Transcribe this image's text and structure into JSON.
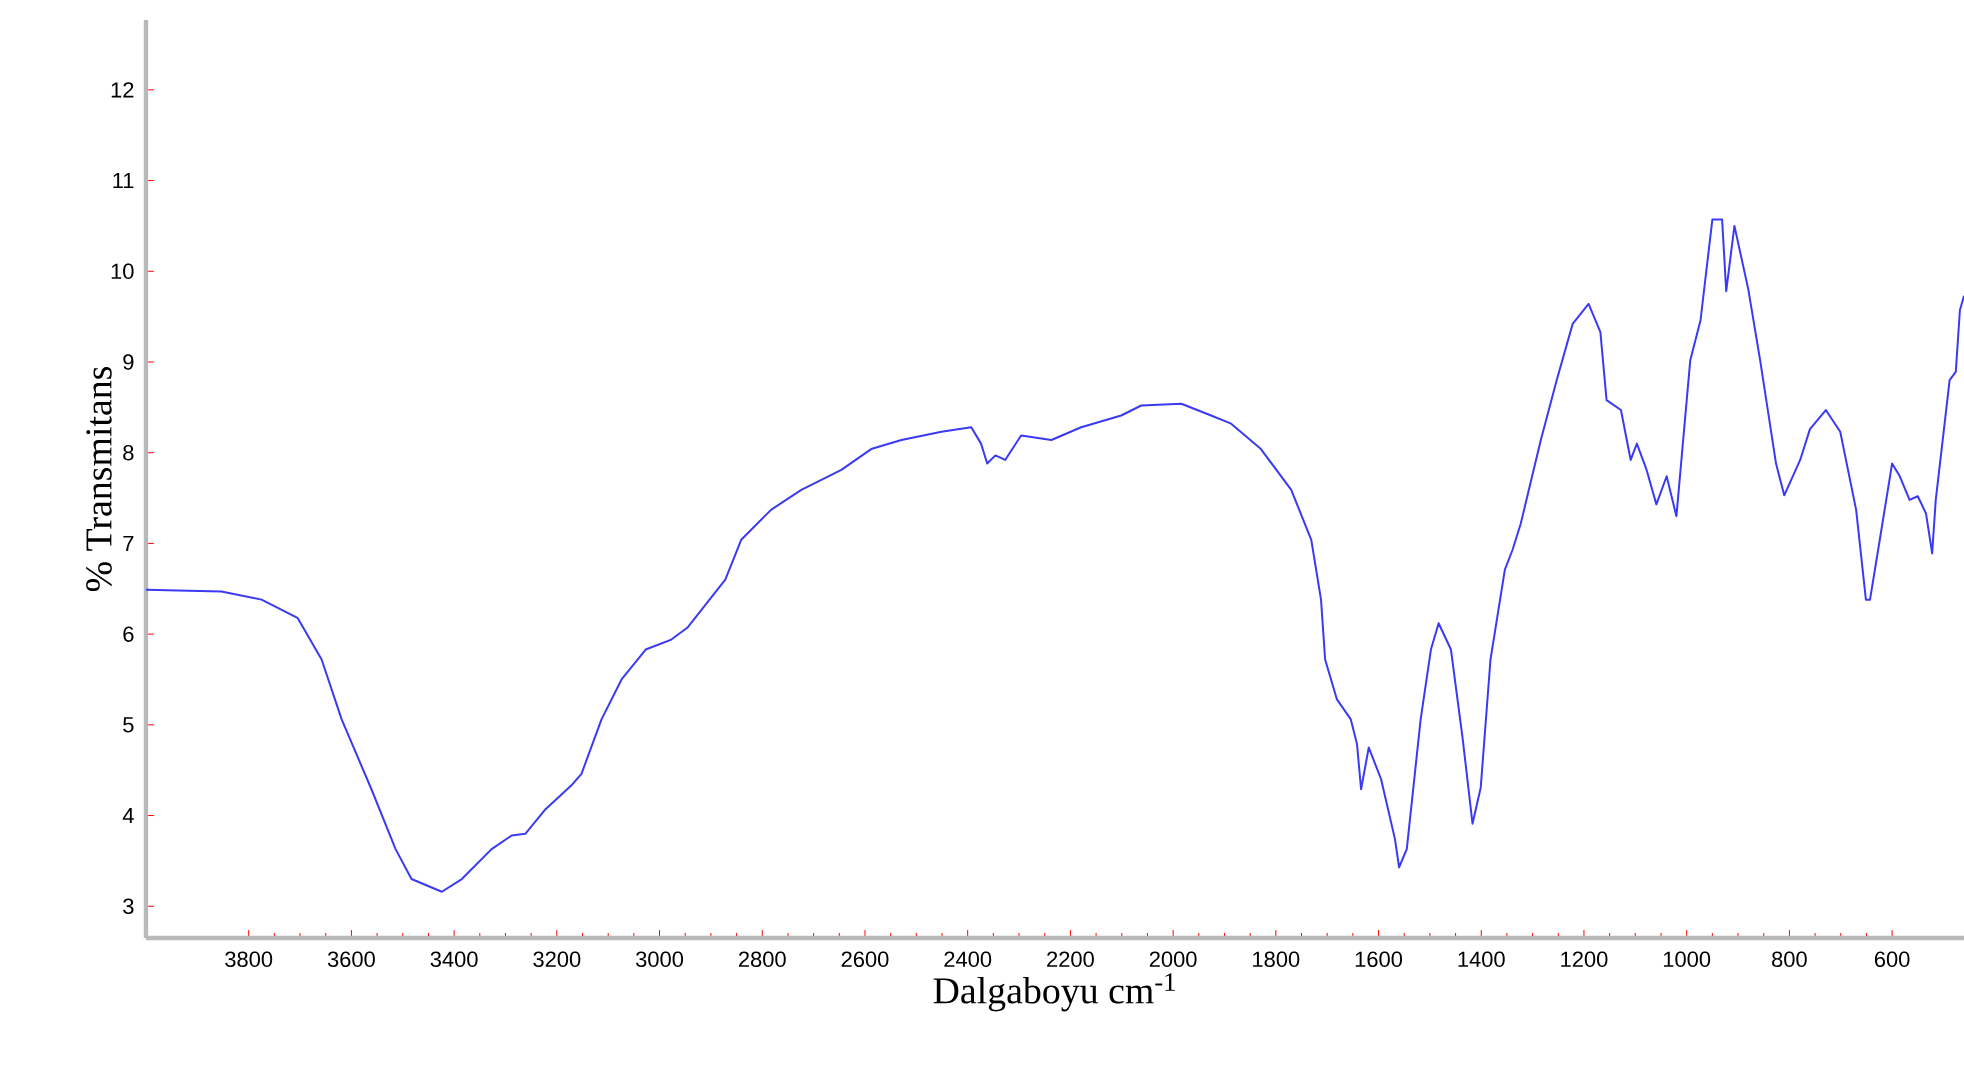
{
  "chart_data": {
    "type": "line",
    "xlabel": "Dalgaboyu cm$^{-1}$",
    "ylabel": "% Transmitans",
    "xlim": [
      4000,
      460
    ],
    "ylim": [
      2.65,
      12.77
    ],
    "xticks": [
      3800,
      3600,
      3400,
      3200,
      3000,
      2800,
      2600,
      2400,
      2200,
      2000,
      1800,
      1600,
      1400,
      1200,
      1000,
      800,
      600
    ],
    "yticks": [
      3,
      4,
      5,
      6,
      7,
      8,
      9,
      10,
      11,
      12
    ],
    "series": [
      {
        "color": "#3a3af5",
        "x": [
          4000,
          3853,
          3775,
          3705,
          3658,
          3619,
          3561,
          3514,
          3483,
          3424,
          3385,
          3327,
          3288,
          3261,
          3222,
          3172,
          3152,
          3113,
          3074,
          3027,
          2977,
          2946,
          2918,
          2872,
          2841,
          2783,
          2724,
          2646,
          2588,
          2529,
          2451,
          2393,
          2374,
          2362,
          2346,
          2327,
          2296,
          2237,
          2179,
          2101,
          2062,
          1984,
          1926,
          1887,
          1829,
          1770,
          1731,
          1712,
          1704,
          1681,
          1654,
          1642,
          1634,
          1619,
          1595,
          1568,
          1560,
          1545,
          1518,
          1498,
          1483,
          1459,
          1436,
          1417,
          1401,
          1382,
          1354,
          1339,
          1323,
          1284,
          1253,
          1222,
          1191,
          1168,
          1156,
          1128,
          1109,
          1097,
          1078,
          1059,
          1039,
          1020,
          993,
          973,
          950,
          931,
          923,
          907,
          880,
          857,
          826,
          810,
          779,
          760,
          729,
          701,
          670,
          651,
          643,
          624,
          600,
          585,
          566,
          550,
          534,
          522,
          515,
          499,
          488,
          476,
          468,
          460
        ],
        "values": [
          6.49,
          6.47,
          6.38,
          6.18,
          5.72,
          5.06,
          4.29,
          3.63,
          3.3,
          3.16,
          3.3,
          3.63,
          3.78,
          3.8,
          4.07,
          4.33,
          4.46,
          5.06,
          5.5,
          5.83,
          5.94,
          6.07,
          6.27,
          6.6,
          7.04,
          7.37,
          7.59,
          7.81,
          8.04,
          8.14,
          8.23,
          8.28,
          8.1,
          7.88,
          7.97,
          7.92,
          8.19,
          8.14,
          8.28,
          8.41,
          8.52,
          8.54,
          8.41,
          8.32,
          8.04,
          7.59,
          7.04,
          6.38,
          5.72,
          5.28,
          5.06,
          4.79,
          4.29,
          4.75,
          4.4,
          3.74,
          3.43,
          3.63,
          5.06,
          5.83,
          6.12,
          5.83,
          4.84,
          3.91,
          4.31,
          5.72,
          6.71,
          6.93,
          7.22,
          8.14,
          8.8,
          9.42,
          9.64,
          9.33,
          8.58,
          8.47,
          7.92,
          8.1,
          7.81,
          7.43,
          7.74,
          7.3,
          9.02,
          9.46,
          10.57,
          10.57,
          9.78,
          10.5,
          9.8,
          9.02,
          7.88,
          7.53,
          7.92,
          8.26,
          8.47,
          8.23,
          7.37,
          6.38,
          6.38,
          7.04,
          7.88,
          7.74,
          7.48,
          7.52,
          7.33,
          6.89,
          7.48,
          8.26,
          8.8,
          8.89,
          9.57,
          9.73
        ]
      }
    ]
  }
}
